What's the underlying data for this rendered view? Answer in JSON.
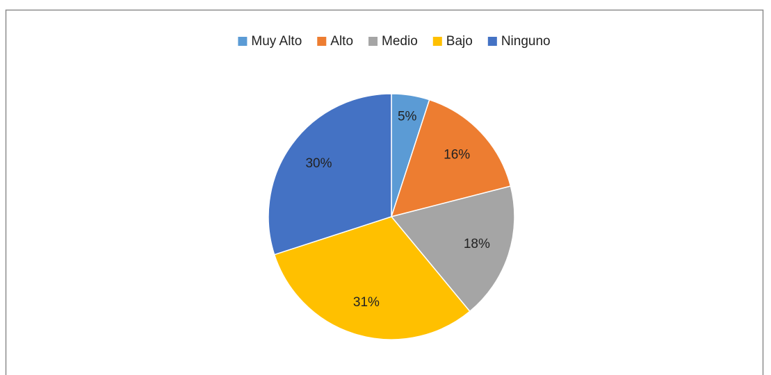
{
  "chart_data": {
    "type": "pie",
    "categories": [
      "Muy Alto",
      "Alto",
      "Medio",
      "Bajo",
      "Ninguno"
    ],
    "values": [
      5,
      16,
      18,
      31,
      30
    ],
    "value_labels": [
      "5%",
      "16%",
      "18%",
      "31%",
      "30%"
    ],
    "colors": [
      "#5b9bd5",
      "#ed7d31",
      "#a5a5a5",
      "#ffc000",
      "#4472c4"
    ],
    "legend": "top"
  }
}
